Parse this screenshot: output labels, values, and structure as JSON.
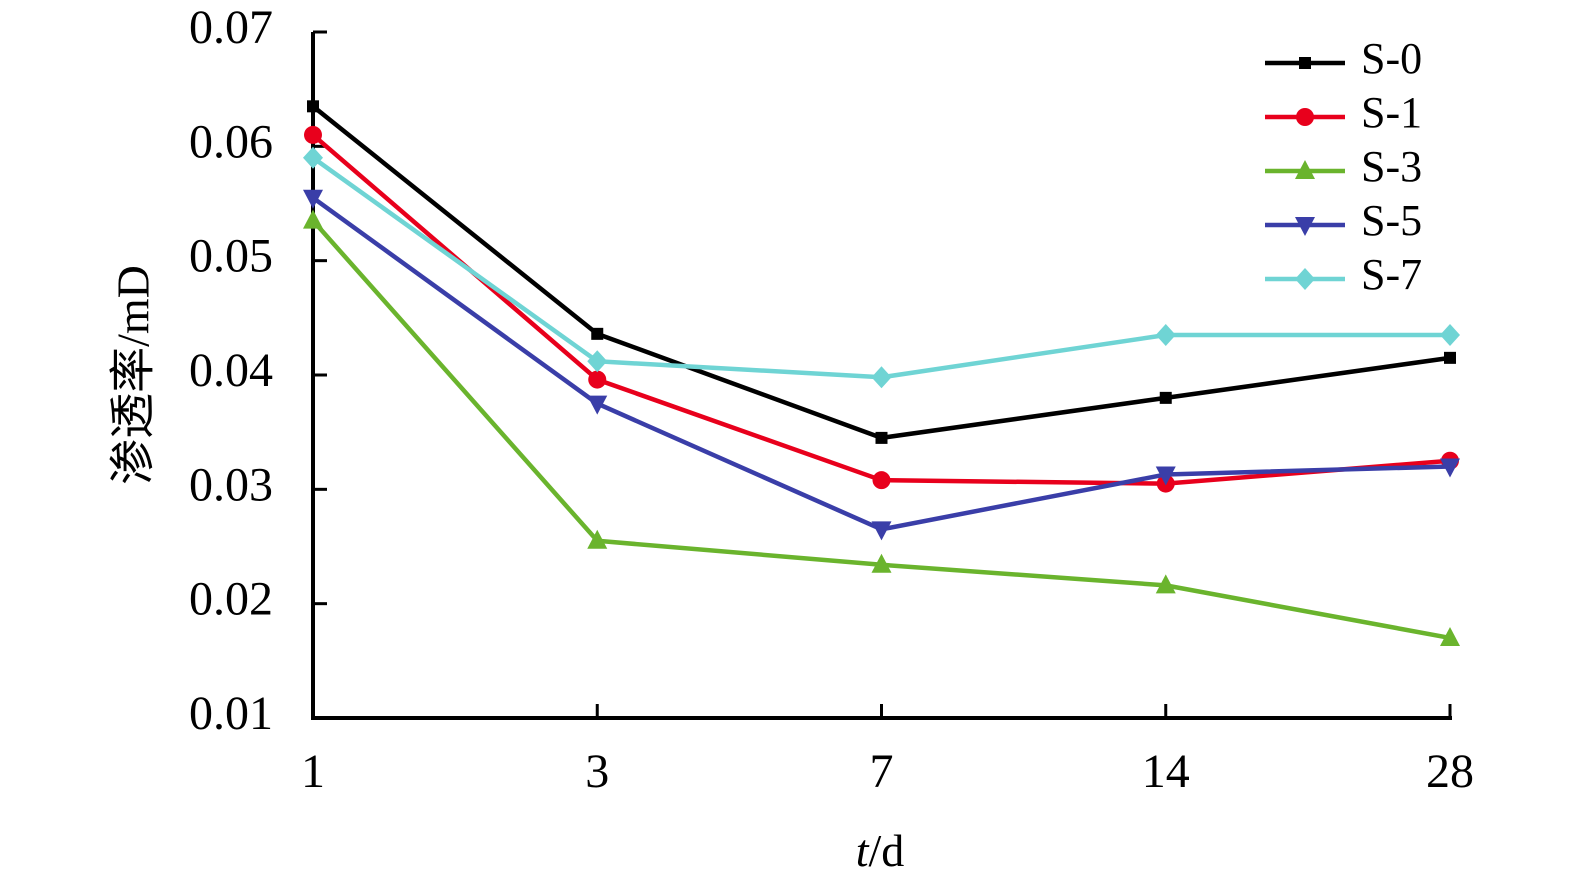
{
  "chart_data": {
    "type": "line",
    "categories": [
      "1",
      "3",
      "7",
      "14",
      "28"
    ],
    "ylabel": "渗透率/mD",
    "xlabel_italic": "t",
    "xlabel_rest": "/d",
    "ylim": [
      0.01,
      0.07
    ],
    "y_ticks": [
      "0.01",
      "0.02",
      "0.03",
      "0.04",
      "0.05",
      "0.06",
      "0.07"
    ],
    "grid": false,
    "legend_position": "top-right",
    "series": [
      {
        "name": "S-0",
        "color": "#000000",
        "marker": "square",
        "values": [
          0.0635,
          0.0436,
          0.0345,
          0.038,
          0.0415
        ]
      },
      {
        "name": "S-1",
        "color": "#e8001c",
        "marker": "circle",
        "values": [
          0.061,
          0.0396,
          0.0308,
          0.0305,
          0.0325
        ]
      },
      {
        "name": "S-3",
        "color": "#6ab42d",
        "marker": "triangle-up",
        "values": [
          0.0535,
          0.0255,
          0.0234,
          0.0216,
          0.017
        ]
      },
      {
        "name": "S-5",
        "color": "#3a3ea8",
        "marker": "triangle-down",
        "values": [
          0.0555,
          0.0375,
          0.0265,
          0.0313,
          0.032
        ]
      },
      {
        "name": "S-7",
        "color": "#6fd4d4",
        "marker": "diamond",
        "values": [
          0.059,
          0.0412,
          0.0398,
          0.0435,
          0.0435
        ]
      }
    ]
  }
}
